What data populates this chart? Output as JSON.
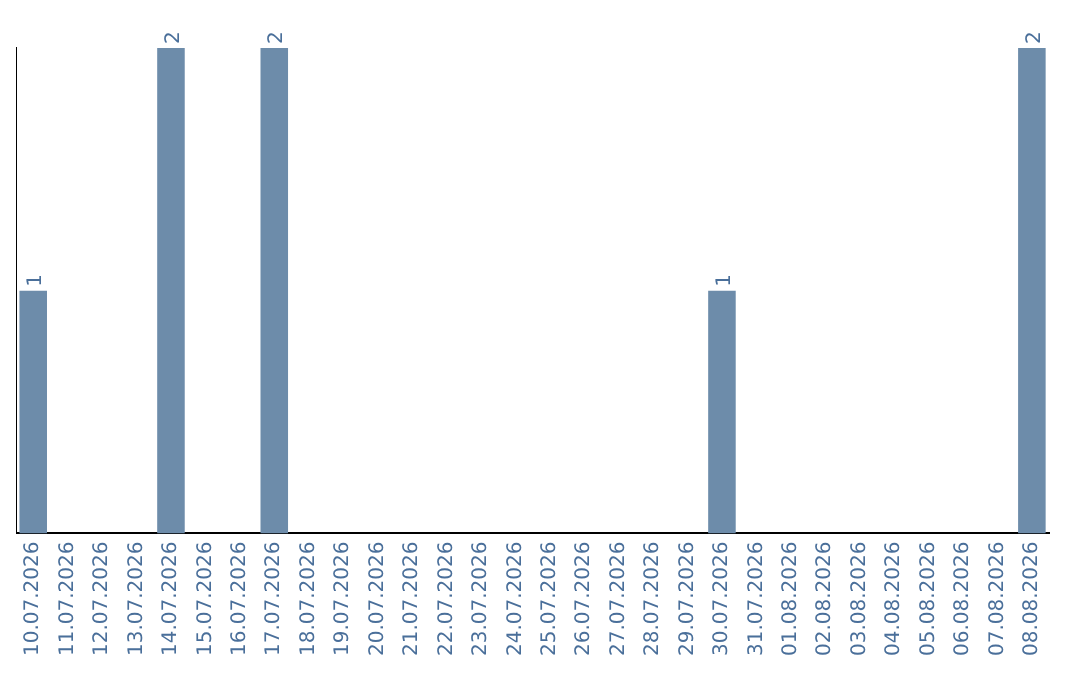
{
  "chart_data": {
    "type": "bar",
    "categories": [
      "10.07.2026",
      "11.07.2026",
      "12.07.2026",
      "13.07.2026",
      "14.07.2026",
      "15.07.2026",
      "16.07.2026",
      "17.07.2026",
      "18.07.2026",
      "19.07.2026",
      "20.07.2026",
      "21.07.2026",
      "22.07.2026",
      "23.07.2026",
      "24.07.2026",
      "25.07.2026",
      "26.07.2026",
      "27.07.2026",
      "28.07.2026",
      "29.07.2026",
      "30.07.2026",
      "31.07.2026",
      "01.08.2026",
      "02.08.2026",
      "03.08.2026",
      "04.08.2026",
      "05.08.2026",
      "06.08.2026",
      "07.08.2026",
      "08.08.2026"
    ],
    "values": [
      1,
      0,
      0,
      0,
      2,
      0,
      0,
      2,
      0,
      0,
      0,
      0,
      0,
      0,
      0,
      0,
      0,
      0,
      0,
      0,
      1,
      0,
      0,
      0,
      0,
      0,
      0,
      0,
      0,
      2
    ],
    "value_labels": [
      "1",
      null,
      null,
      null,
      "2",
      null,
      null,
      "2",
      null,
      null,
      null,
      null,
      null,
      null,
      null,
      null,
      null,
      null,
      null,
      null,
      "1",
      null,
      null,
      null,
      null,
      null,
      null,
      null,
      null,
      "2"
    ],
    "color": "#6d8caa",
    "ylim": [
      0,
      2
    ],
    "tick_labels": "x",
    "grid": false,
    "legend": false
  }
}
